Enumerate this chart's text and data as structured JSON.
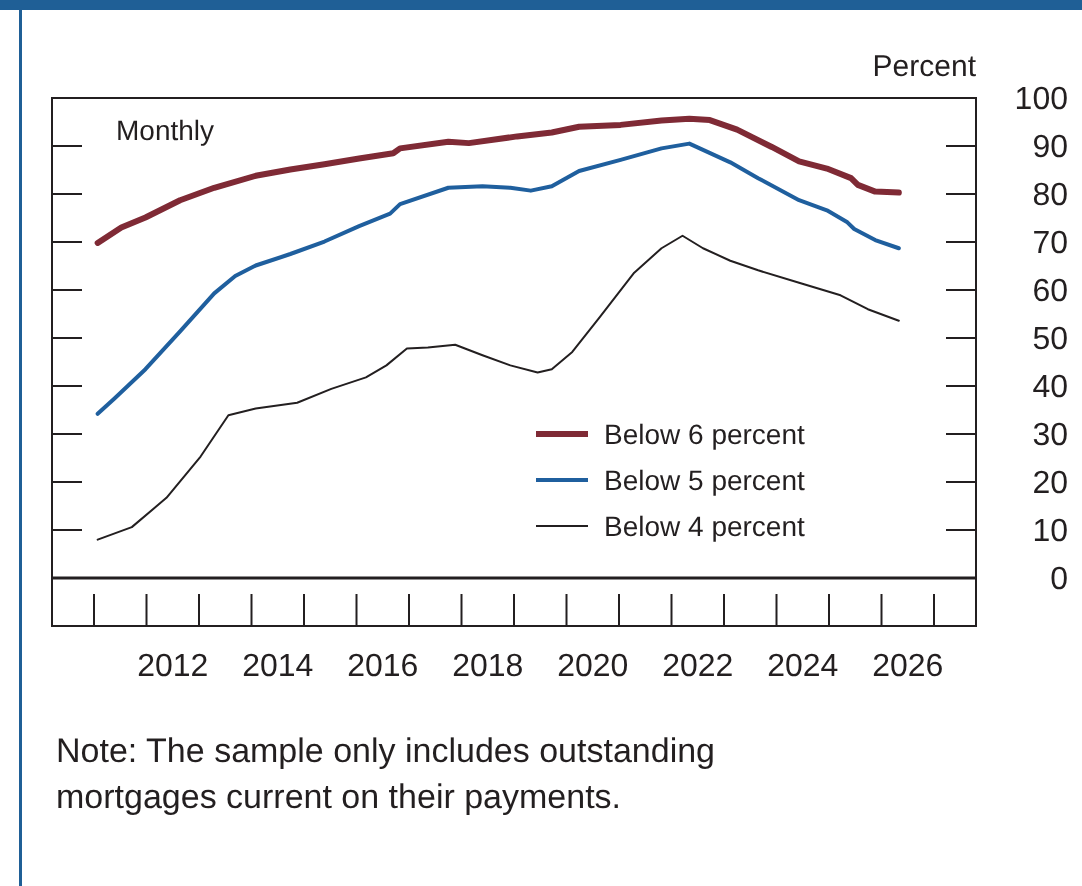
{
  "chart_data": {
    "type": "line",
    "ylabel": "Percent",
    "annotations": [
      "Monthly",
      "Note: The sample only includes outstanding mortgages current on their payments."
    ],
    "xlim": [
      2010.2,
      2027.8
    ],
    "xticks": [
      {
        "value": 2011,
        "label": null
      },
      {
        "value": 2012,
        "label": null
      },
      {
        "value": 2012.5,
        "label": "2012"
      },
      {
        "value": 2013,
        "label": null
      },
      {
        "value": 2014,
        "label": null
      },
      {
        "value": 2014.5,
        "label": "2014"
      },
      {
        "value": 2015,
        "label": null
      },
      {
        "value": 2016,
        "label": null
      },
      {
        "value": 2016.5,
        "label": "2016"
      },
      {
        "value": 2017,
        "label": null
      },
      {
        "value": 2018,
        "label": null
      },
      {
        "value": 2018.5,
        "label": "2018"
      },
      {
        "value": 2019,
        "label": null
      },
      {
        "value": 2020,
        "label": null
      },
      {
        "value": 2020.5,
        "label": "2020"
      },
      {
        "value": 2021,
        "label": null
      },
      {
        "value": 2022,
        "label": null
      },
      {
        "value": 2022.5,
        "label": "2022"
      },
      {
        "value": 2023,
        "label": null
      },
      {
        "value": 2024,
        "label": null
      },
      {
        "value": 2024.5,
        "label": "2024"
      },
      {
        "value": 2025,
        "label": null
      },
      {
        "value": 2026,
        "label": null
      },
      {
        "value": 2026.5,
        "label": "2026"
      },
      {
        "value": 2027,
        "label": null
      }
    ],
    "ylim": [
      -10,
      100
    ],
    "yticks": [
      0,
      10,
      20,
      30,
      40,
      50,
      60,
      70,
      80,
      90,
      100
    ],
    "grid": false,
    "legend": "bottom right",
    "ref_lines": [
      {
        "axis": "y",
        "value": 0,
        "color": "#231f20"
      }
    ],
    "series": [
      {
        "name": "Below 6 percent",
        "color": "#7f2a35",
        "x": [
          2011.07,
          2011.52,
          2011.98,
          2012.64,
          2013.29,
          2014.08,
          2014.74,
          2015.39,
          2016.05,
          2016.7,
          2016.83,
          2017.75,
          2018.14,
          2019.06,
          2019.72,
          2020.24,
          2021.03,
          2021.81,
          2022.34,
          2022.73,
          2023.25,
          2023.91,
          2024.43,
          2024.96,
          2025.42,
          2025.55,
          2025.88,
          2026.33
        ],
        "values": [
          69.8,
          73.0,
          75.1,
          78.7,
          81.3,
          83.8,
          85.1,
          86.2,
          87.4,
          88.5,
          89.5,
          90.9,
          90.6,
          92.0,
          92.8,
          94.0,
          94.4,
          95.3,
          95.7,
          95.4,
          93.4,
          89.8,
          86.8,
          85.3,
          83.3,
          81.9,
          80.5,
          80.3
        ]
      },
      {
        "name": "Below 5 percent",
        "color": "#1f5f9e",
        "x": [
          2011.07,
          2011.39,
          2011.98,
          2012.64,
          2013.29,
          2013.69,
          2014.08,
          2014.74,
          2015.39,
          2016.05,
          2016.64,
          2016.83,
          2017.75,
          2018.4,
          2018.93,
          2019.32,
          2019.72,
          2020.24,
          2021.03,
          2021.81,
          2022.34,
          2023.12,
          2023.65,
          2024.43,
          2024.96,
          2025.35,
          2025.48,
          2025.88,
          2026.33
        ],
        "values": [
          34.2,
          37.4,
          43.5,
          51.4,
          59.3,
          62.9,
          65.1,
          67.5,
          70.1,
          73.3,
          75.9,
          77.9,
          81.3,
          81.6,
          81.3,
          80.7,
          81.6,
          84.8,
          87.1,
          89.5,
          90.5,
          86.6,
          83.3,
          78.7,
          76.6,
          74.1,
          72.7,
          70.4,
          68.7
        ]
      },
      {
        "name": "Below 4 percent",
        "color": "#231f20",
        "x": [
          2011.07,
          2011.72,
          2012.38,
          2013.03,
          2013.56,
          2014.08,
          2014.87,
          2015.52,
          2016.18,
          2016.57,
          2016.96,
          2017.36,
          2017.88,
          2018.4,
          2018.93,
          2019.45,
          2019.72,
          2020.11,
          2020.63,
          2021.29,
          2021.81,
          2022.21,
          2022.6,
          2023.12,
          2023.65,
          2024.43,
          2025.22,
          2025.74,
          2026.33
        ],
        "values": [
          8.0,
          10.6,
          16.7,
          25.3,
          33.9,
          35.3,
          36.5,
          39.4,
          41.8,
          44.3,
          47.8,
          48.0,
          48.6,
          46.4,
          44.3,
          42.8,
          43.5,
          47.1,
          54.3,
          63.6,
          68.7,
          71.3,
          68.7,
          66.1,
          64.1,
          61.5,
          58.9,
          56.0,
          53.6
        ]
      }
    ]
  }
}
